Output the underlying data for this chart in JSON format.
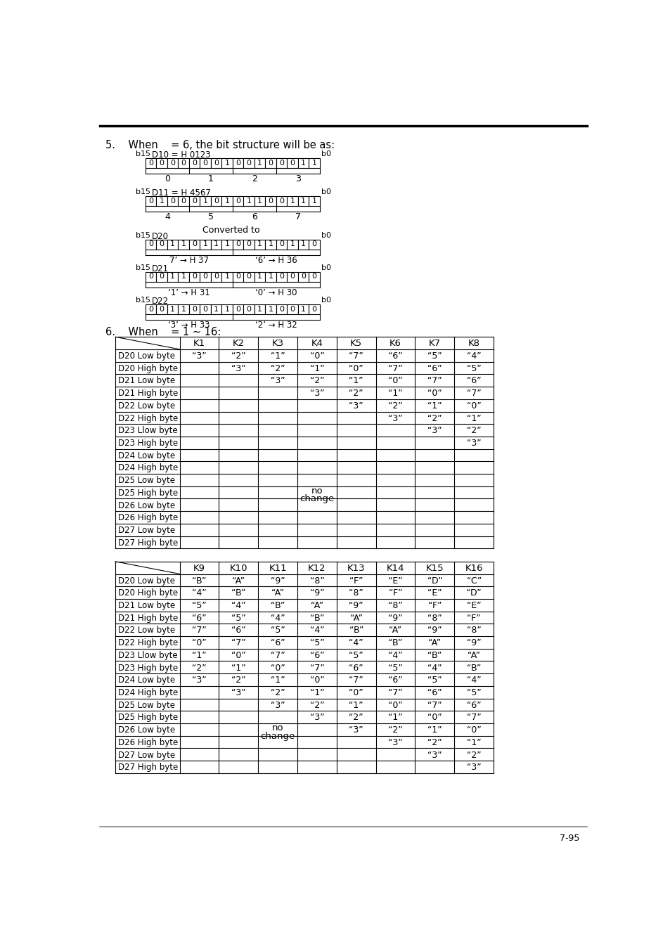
{
  "section5_text": "5.    When    = 6, the bit structure will be as:",
  "section6_text": "6.    When    = 1 ~ 16:",
  "bits_d10": [
    "0",
    "0",
    "0",
    "0",
    "0",
    "0",
    "0",
    "1",
    "0",
    "0",
    "1",
    "0",
    "0",
    "0",
    "1",
    "1"
  ],
  "bits_d11": [
    "0",
    "1",
    "0",
    "0",
    "0",
    "1",
    "0",
    "1",
    "0",
    "1",
    "1",
    "0",
    "0",
    "1",
    "1",
    "1"
  ],
  "bits_d20": [
    "0",
    "0",
    "1",
    "1",
    "0",
    "1",
    "1",
    "1",
    "0",
    "0",
    "1",
    "1",
    "0",
    "1",
    "1",
    "0"
  ],
  "bits_d21": [
    "0",
    "0",
    "1",
    "1",
    "0",
    "0",
    "0",
    "1",
    "0",
    "0",
    "1",
    "1",
    "0",
    "0",
    "0",
    "0"
  ],
  "bits_d22": [
    "0",
    "0",
    "1",
    "1",
    "0",
    "0",
    "1",
    "1",
    "0",
    "0",
    "1",
    "1",
    "0",
    "0",
    "1",
    "0"
  ],
  "sub_d10": [
    "0",
    "1",
    "2",
    "3"
  ],
  "sub_d11": [
    "4",
    "5",
    "6",
    "7"
  ],
  "sub_d20_l": "7’ → H 37",
  "sub_d20_r": "‘6’ → H 36",
  "sub_d21_l": "‘1’ → H 31",
  "sub_d21_r": "‘0’ → H 30",
  "sub_d22_l": "‘3’ → H 33",
  "sub_d22_r": "‘2’ → H 32",
  "table1_headers": [
    "K1",
    "K2",
    "K3",
    "K4",
    "K5",
    "K6",
    "K7",
    "K8"
  ],
  "table1_rows": [
    [
      "D20 Low byte",
      "“3”",
      "“2”",
      "“1”",
      "“0”",
      "“7”",
      "“6”",
      "“5”",
      "“4”"
    ],
    [
      "D20 High byte",
      "",
      "“3”",
      "“2”",
      "“1”",
      "“0”",
      "“7”",
      "“6”",
      "“5”"
    ],
    [
      "D21 Low byte",
      "",
      "",
      "“3”",
      "“2”",
      "“1”",
      "“0”",
      "“7”",
      "“6”"
    ],
    [
      "D21 High byte",
      "",
      "",
      "",
      "“3”",
      "“2”",
      "“1”",
      "“0”",
      "“7”"
    ],
    [
      "D22 Low byte",
      "",
      "",
      "",
      "",
      "“3”",
      "“2”",
      "“1”",
      "“0”"
    ],
    [
      "D22 High byte",
      "",
      "",
      "",
      "",
      "",
      "“3”",
      "“2”",
      "“1”"
    ],
    [
      "D23 Llow byte",
      "",
      "",
      "",
      "",
      "",
      "",
      "“3”",
      "“2”"
    ],
    [
      "D23 High byte",
      "",
      "",
      "",
      "",
      "",
      "",
      "",
      "“3”"
    ],
    [
      "D24 Low byte",
      "",
      "",
      "",
      "",
      "",
      "",
      "",
      ""
    ],
    [
      "D24 High byte",
      "",
      "",
      "",
      "",
      "",
      "",
      "",
      ""
    ],
    [
      "D25 Low byte",
      "",
      "",
      "",
      "",
      "",
      "",
      "",
      ""
    ],
    [
      "D25 High byte",
      "",
      "",
      "",
      "",
      "",
      "",
      "",
      ""
    ],
    [
      "D26 Low byte",
      "",
      "",
      "",
      "",
      "",
      "",
      "",
      ""
    ],
    [
      "D26 High byte",
      "",
      "",
      "",
      "",
      "",
      "",
      "",
      ""
    ],
    [
      "D27 Low byte",
      "",
      "",
      "",
      "",
      "",
      "",
      "",
      ""
    ],
    [
      "D27 High byte",
      "",
      "",
      "",
      "",
      "",
      "",
      "",
      ""
    ]
  ],
  "table2_headers": [
    "K9",
    "K10",
    "K11",
    "K12",
    "K13",
    "K14",
    "K15",
    "K16"
  ],
  "table2_rows": [
    [
      "D20 Low byte",
      "“B”",
      "“A”",
      "“9”",
      "“8”",
      "“F”",
      "“E”",
      "“D”",
      "“C”"
    ],
    [
      "D20 High byte",
      "“4”",
      "“B”",
      "“A”",
      "“9”",
      "“8”",
      "“F”",
      "“E”",
      "“D”"
    ],
    [
      "D21 Low byte",
      "“5”",
      "“4”",
      "“B”",
      "“A”",
      "“9”",
      "“8”",
      "“F”",
      "“E”"
    ],
    [
      "D21 High byte",
      "“6”",
      "“5”",
      "“4”",
      "“B”",
      "“A”",
      "“9”",
      "“8”",
      "“F”"
    ],
    [
      "D22 Low byte",
      "“7”",
      "“6”",
      "“5”",
      "“4”",
      "“B”",
      "“A”",
      "“9”",
      "“8”"
    ],
    [
      "D22 High byte",
      "“0”",
      "“7”",
      "“6”",
      "“5”",
      "“4”",
      "“B”",
      "“A”",
      "“9”"
    ],
    [
      "D23 Llow byte",
      "“1”",
      "“0”",
      "“7”",
      "“6”",
      "“5”",
      "“4”",
      "“B”",
      "“A”"
    ],
    [
      "D23 High byte",
      "“2”",
      "“1”",
      "“0”",
      "“7”",
      "“6”",
      "“5”",
      "“4”",
      "“B”"
    ],
    [
      "D24 Low byte",
      "“3”",
      "“2”",
      "“1”",
      "“0”",
      "“7”",
      "“6”",
      "“5”",
      "“4”"
    ],
    [
      "D24 High byte",
      "",
      "“3”",
      "“2”",
      "“1”",
      "“0”",
      "“7”",
      "“6”",
      "“5”"
    ],
    [
      "D25 Low byte",
      "",
      "",
      "“3”",
      "“2”",
      "“1”",
      "“0”",
      "“7”",
      "“6”"
    ],
    [
      "D25 High byte",
      "",
      "",
      "",
      "“3”",
      "“2”",
      "“1”",
      "“0”",
      "“7”"
    ],
    [
      "D26 Low byte",
      "",
      "",
      "",
      "",
      "“3”",
      "“2”",
      "“1”",
      "“0”"
    ],
    [
      "D26 High byte",
      "",
      "",
      "",
      "",
      "",
      "“3”",
      "“2”",
      "“1”"
    ],
    [
      "D27 Low byte",
      "",
      "",
      "",
      "",
      "",
      "",
      "“3”",
      "“2”"
    ],
    [
      "D27 High byte",
      "",
      "",
      "",
      "",
      "",
      "",
      "",
      "“3”"
    ]
  ],
  "page_number": "7-95"
}
